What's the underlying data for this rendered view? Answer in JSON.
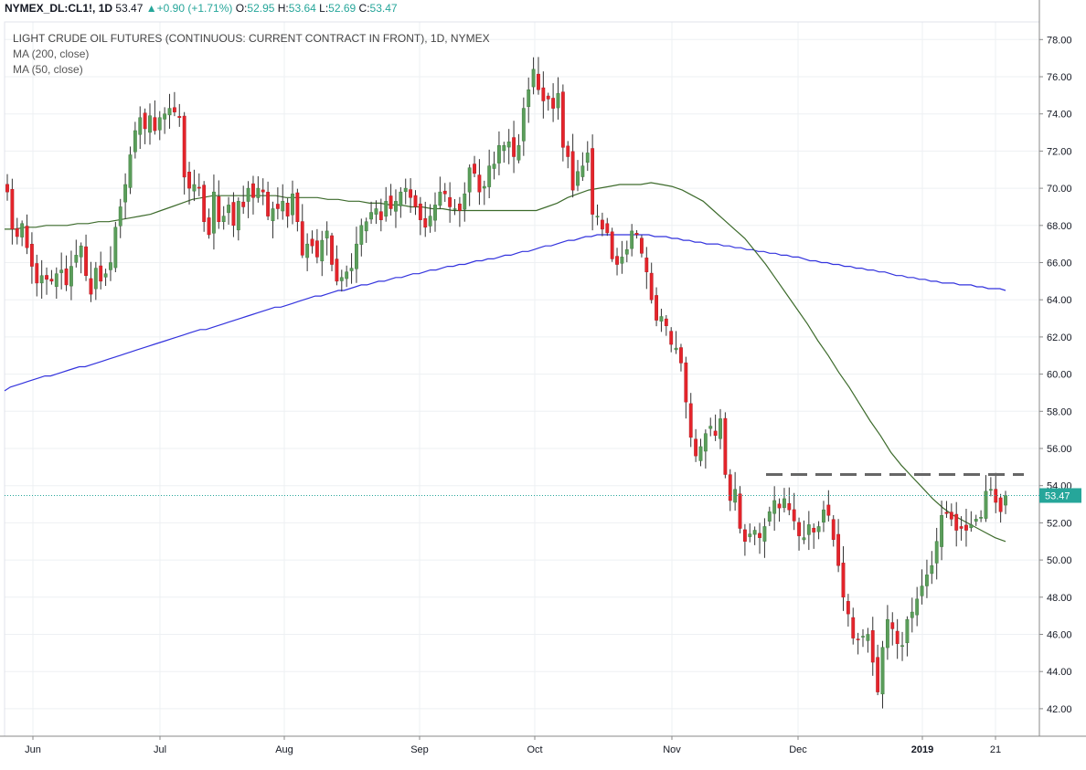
{
  "header": {
    "symbol": "NYMEX_DL:CL1!,",
    "interval": "1D",
    "last": "53.47",
    "change": "+0.90 (+1.71%)",
    "o_label": "O:",
    "o_value": "52.95",
    "h_label": "H:",
    "h_value": "53.64",
    "l_label": "L:",
    "l_value": "52.69",
    "c_label": "C:",
    "c_value": "53.47"
  },
  "legend": {
    "title": "LIGHT CRUDE OIL FUTURES (CONTINUOUS: CURRENT CONTRACT IN FRONT), 1D, NYMEX",
    "ma200": "MA (200, close)",
    "ma50": "MA (50, close)"
  },
  "colors": {
    "up": "#5b9e5b",
    "down": "#e5242b",
    "ma200": "#3333dd",
    "ma50": "#3d6b2c",
    "price_line": "#26a69a",
    "price_tag": "#26a69a",
    "resistance": "#666666"
  },
  "chart_data": {
    "type": "candlestick",
    "ylim": [
      41,
      79
    ],
    "y_ticks": [
      "42.00",
      "44.00",
      "46.00",
      "48.00",
      "50.00",
      "52.00",
      "54.00",
      "56.00",
      "58.00",
      "60.00",
      "62.00",
      "64.00",
      "66.00",
      "68.00",
      "70.00",
      "72.00",
      "74.00",
      "76.00",
      "78.00"
    ],
    "x_ticks": [
      "Jun",
      "Jul",
      "Aug",
      "Sep",
      "Oct",
      "Nov",
      "Dec",
      "2019",
      "21"
    ],
    "last_price_label": "53.47",
    "last_price": 53.47,
    "resistance_level": 54.6,
    "closes": [
      69.8,
      67.8,
      67.4,
      68.1,
      66.8,
      65.8,
      64.9,
      65.3,
      65.1,
      65.0,
      65.4,
      65.6,
      64.8,
      65.8,
      66.4,
      66.9,
      65.3,
      64.3,
      65.7,
      65.0,
      65.4,
      66.0,
      67.9,
      69.0,
      70.2,
      71.8,
      73.1,
      73.8,
      73.2,
      73.9,
      73.1,
      73.8,
      74.0,
      74.3,
      74.1,
      73.8,
      70.6,
      70.0,
      70.2,
      70.0,
      68.2,
      67.5,
      69.8,
      68.2,
      68.5,
      69.1,
      68.0,
      69.3,
      69.0,
      70.0,
      69.5,
      70.0,
      69.8,
      68.5,
      68.9,
      68.9,
      69.3,
      68.5,
      69.7,
      68.2,
      66.4,
      67.0,
      66.9,
      66.3,
      67.2,
      67.7,
      65.9,
      65.0,
      65.2,
      65.5,
      65.7,
      67.0,
      68.0,
      68.2,
      68.7,
      68.9,
      68.3,
      69.3,
      68.9,
      69.3,
      69.8,
      70.0,
      69.5,
      69.0,
      68.3,
      67.9,
      68.5,
      69.1,
      69.8,
      69.7,
      69.0,
      68.9,
      68.8,
      69.7,
      71.1,
      70.8,
      69.8,
      70.1,
      71.2,
      71.3,
      72.3,
      72.3,
      72.5,
      71.7,
      72.3,
      74.3,
      75.3,
      76.4,
      75.3,
      74.7,
      74.8,
      74.3,
      75.1,
      72.2,
      71.7,
      69.9,
      70.9,
      71.2,
      71.9,
      68.6,
      68.5,
      67.8,
      67.6,
      66.2,
      65.9,
      66.3,
      66.7,
      67.7,
      67.5,
      66.5,
      65.5,
      64.0,
      62.9,
      63.1,
      62.6,
      61.6,
      61.4,
      60.6,
      58.5,
      56.6,
      55.6,
      56.1,
      56.8,
      57.2,
      56.7,
      57.6,
      54.6,
      53.2,
      53.8,
      51.7,
      51.0,
      51.4,
      51.6,
      51.2,
      51.8,
      52.6,
      53.2,
      52.8,
      53.3,
      52.7,
      52.1,
      51.3,
      51.2,
      51.9,
      51.5,
      51.8,
      52.7,
      52.4,
      51.1,
      49.7,
      48.0,
      47.1,
      45.8,
      45.7,
      45.9,
      46.0,
      44.5,
      42.9,
      45.3,
      46.8,
      46.3,
      45.5,
      45.4,
      46.8,
      47.2,
      47.9,
      48.6,
      49.2,
      49.7,
      51.0,
      52.4,
      52.5,
      52.2,
      51.6,
      51.7,
      51.6,
      51.9,
      52.2,
      52.3,
      53.7,
      53.8,
      53.1,
      52.6,
      53.47
    ],
    "ma200": [
      59.1,
      59.3,
      59.4,
      59.5,
      59.6,
      59.7,
      59.8,
      59.9,
      59.9,
      60.0,
      60.1,
      60.2,
      60.3,
      60.4,
      60.4,
      60.5,
      60.6,
      60.7,
      60.8,
      60.9,
      61.0,
      61.1,
      61.2,
      61.3,
      61.4,
      61.5,
      61.6,
      61.7,
      61.8,
      61.9,
      62.0,
      62.1,
      62.2,
      62.3,
      62.4,
      62.4,
      62.5,
      62.6,
      62.7,
      62.8,
      62.9,
      63.0,
      63.1,
      63.2,
      63.3,
      63.4,
      63.5,
      63.6,
      63.6,
      63.7,
      63.8,
      63.9,
      64.0,
      64.1,
      64.2,
      64.2,
      64.3,
      64.4,
      64.5,
      64.5,
      64.6,
      64.7,
      64.8,
      64.8,
      64.9,
      65.0,
      65.0,
      65.1,
      65.2,
      65.2,
      65.3,
      65.4,
      65.4,
      65.5,
      65.6,
      65.6,
      65.7,
      65.8,
      65.8,
      65.9,
      65.9,
      66.0,
      66.1,
      66.1,
      66.2,
      66.2,
      66.3,
      66.4,
      66.4,
      66.5,
      66.6,
      66.6,
      66.7,
      66.8,
      66.9,
      66.9,
      67.0,
      67.1,
      67.2,
      67.2,
      67.3,
      67.4,
      67.4,
      67.5,
      67.5,
      67.5,
      67.5,
      67.5,
      67.5,
      67.5,
      67.5,
      67.5,
      67.5,
      67.4,
      67.4,
      67.4,
      67.3,
      67.3,
      67.2,
      67.2,
      67.1,
      67.1,
      67.0,
      67.0,
      67.0,
      66.9,
      66.9,
      66.8,
      66.8,
      66.7,
      66.7,
      66.6,
      66.6,
      66.5,
      66.5,
      66.4,
      66.4,
      66.3,
      66.3,
      66.2,
      66.1,
      66.1,
      66.0,
      66.0,
      65.9,
      65.9,
      65.8,
      65.8,
      65.7,
      65.7,
      65.6,
      65.6,
      65.5,
      65.5,
      65.4,
      65.3,
      65.3,
      65.2,
      65.2,
      65.1,
      65.1,
      65.0,
      65.0,
      64.9,
      64.9,
      64.9,
      64.8,
      64.8,
      64.8,
      64.7,
      64.7,
      64.6,
      64.6,
      64.6,
      64.5
    ],
    "ma50": [
      67.8,
      67.8,
      67.9,
      67.9,
      68.0,
      68.0,
      68.0,
      68.1,
      68.1,
      68.2,
      68.2,
      68.3,
      68.4,
      68.5,
      68.6,
      68.8,
      69.0,
      69.2,
      69.4,
      69.5,
      69.6,
      69.6,
      69.6,
      69.6,
      69.6,
      69.6,
      69.6,
      69.5,
      69.5,
      69.5,
      69.5,
      69.4,
      69.4,
      69.3,
      69.3,
      69.2,
      69.2,
      69.1,
      69.1,
      69.0,
      69.0,
      68.9,
      68.9,
      68.8,
      68.8,
      68.8,
      68.8,
      68.8,
      68.8,
      68.8,
      68.8,
      68.8,
      69.0,
      69.2,
      69.5,
      69.7,
      69.9,
      70.0,
      70.1,
      70.2,
      70.2,
      70.2,
      70.3,
      70.2,
      70.1,
      69.9,
      69.6,
      69.3,
      68.8,
      68.3,
      67.8,
      67.3,
      66.6,
      65.9,
      65.1,
      64.3,
      63.5,
      62.7,
      61.8,
      61.0,
      60.1,
      59.3,
      58.4,
      57.5,
      56.7,
      55.8,
      55.1,
      54.5,
      53.9,
      53.3,
      52.8,
      52.4,
      52.1,
      51.8,
      51.5,
      51.2,
      51.0
    ]
  }
}
